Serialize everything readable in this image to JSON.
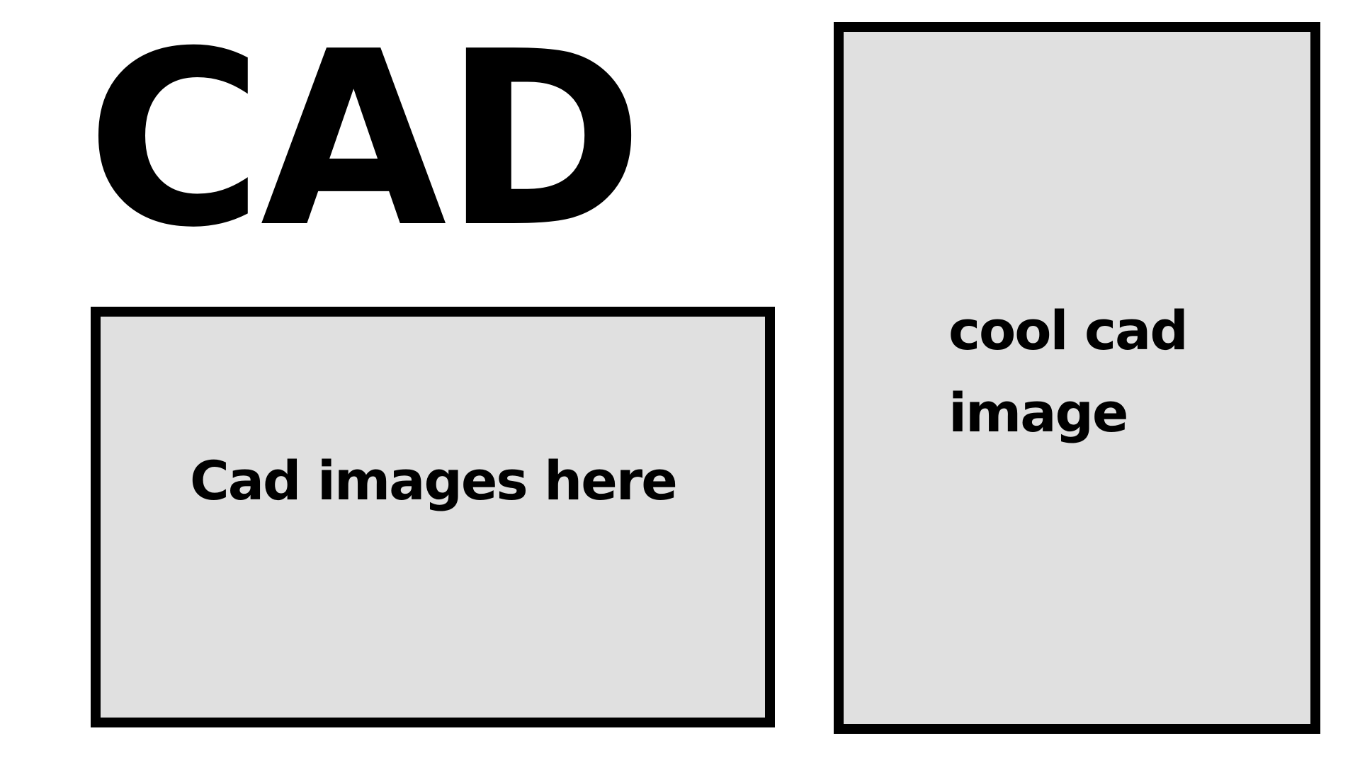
{
  "title": "CAD",
  "panels": {
    "left": {
      "text": "Cad images here"
    },
    "right": {
      "text": "cool cad image"
    }
  },
  "colors": {
    "background": "#ffffff",
    "panel_fill": "#e0e0e0",
    "border": "#000000",
    "text": "#000000"
  }
}
